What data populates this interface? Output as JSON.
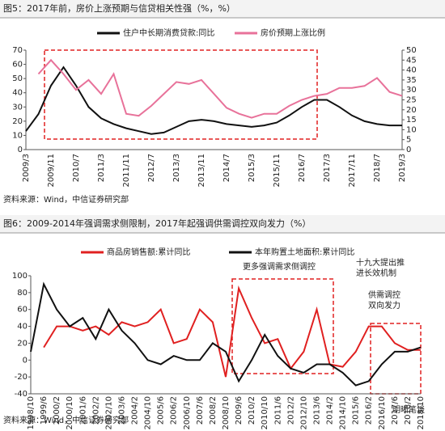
{
  "chart_data": [
    {
      "type": "line",
      "title": "图5：2017年前，房价上涨预期与信贷相关性强（%，%）",
      "categories": [
        "2009/3",
        null,
        "2009/11",
        null,
        "2010/7",
        null,
        "2011/3",
        null,
        "2011/11",
        null,
        "2012/7",
        null,
        "2013/3",
        null,
        "2013/11",
        null,
        "2014/7",
        null,
        "2015/3",
        null,
        "2015/11",
        null,
        "2016/7",
        null,
        "2017/3",
        null,
        "2017/11",
        null,
        "2018/7",
        null,
        "2019/3"
      ],
      "series": [
        {
          "name": "住户中长期消费贷款:同比",
          "color": "#111111",
          "values": [
            13,
            25,
            45,
            58,
            45,
            30,
            22,
            18,
            15,
            13,
            11,
            12,
            16,
            20,
            21,
            20,
            18,
            17,
            16,
            17,
            19,
            24,
            30,
            35,
            35,
            30,
            24,
            20,
            18,
            17,
            17
          ]
        },
        {
          "name": "房价预期上涨比例",
          "color": "#e8729a",
          "axis": "y2",
          "values": [
            null,
            38,
            45,
            38,
            30,
            35,
            28,
            38,
            18,
            17,
            22,
            28,
            34,
            33,
            35,
            28,
            21,
            18,
            16,
            18,
            18,
            22,
            25,
            27,
            28,
            31,
            31,
            32,
            36,
            29,
            27
          ]
        }
      ],
      "ylim": [
        0,
        70
      ],
      "yticks": [
        0,
        10,
        20,
        30,
        40,
        50,
        60,
        70
      ],
      "y2lim": [
        0,
        50
      ],
      "y2ticks": [
        0,
        5,
        10,
        15,
        20,
        25,
        30,
        35,
        40,
        45,
        50
      ],
      "source": "资料来源：Wind，中信证券研究部"
    },
    {
      "type": "line",
      "title": "图6：2009-2014年强调需求侧限制，2017年起强调供需调控双向发力（%）",
      "categories": [
        "1998/10",
        "1999/6",
        "2000/2",
        "2000/10",
        "2001/6",
        "2002/2",
        "2002/10",
        "2003/6",
        "2004/2",
        "2004/10",
        "2005/6",
        "2006/2",
        "2006/10",
        "2007/6",
        "2008/2",
        "2008/10",
        "2009/6",
        "2010/2",
        "2010/10",
        "2011/6",
        "2012/2",
        "2012/10",
        "2013/6",
        "2014/2",
        "2014/10",
        "2015/6",
        "2016/2",
        "2016/10",
        "2017/6",
        "2018/2",
        "2018/10"
      ],
      "series": [
        {
          "name": "商品房销售额:累计同比",
          "color": "#e02020",
          "values": [
            null,
            15,
            40,
            40,
            35,
            40,
            30,
            45,
            40,
            45,
            60,
            20,
            25,
            60,
            45,
            -20,
            85,
            50,
            20,
            25,
            -10,
            10,
            60,
            -5,
            -8,
            10,
            40,
            40,
            20,
            12,
            12
          ]
        },
        {
          "name": "本年购置土地面积:累计同比",
          "color": "#111111",
          "values": [
            10,
            90,
            60,
            40,
            50,
            25,
            60,
            35,
            20,
            0,
            -5,
            5,
            0,
            0,
            20,
            10,
            -25,
            0,
            30,
            5,
            -10,
            -15,
            -5,
            -5,
            -15,
            -30,
            -25,
            -5,
            10,
            10,
            15
          ]
        }
      ],
      "ylim": [
        -40,
        100
      ],
      "yticks": [
        -40,
        -20,
        0,
        20,
        40,
        60,
        80,
        100
      ],
      "annotations": [
        [
          "更多强调需求侧调控"
        ],
        [
          "十九大提出推",
          "进长效机制"
        ],
        [
          "供需调控",
          "双向发力"
        ]
      ],
      "watermark": "明晰笔谈",
      "source": "资料来源：Wind，中信证券研究部"
    }
  ]
}
